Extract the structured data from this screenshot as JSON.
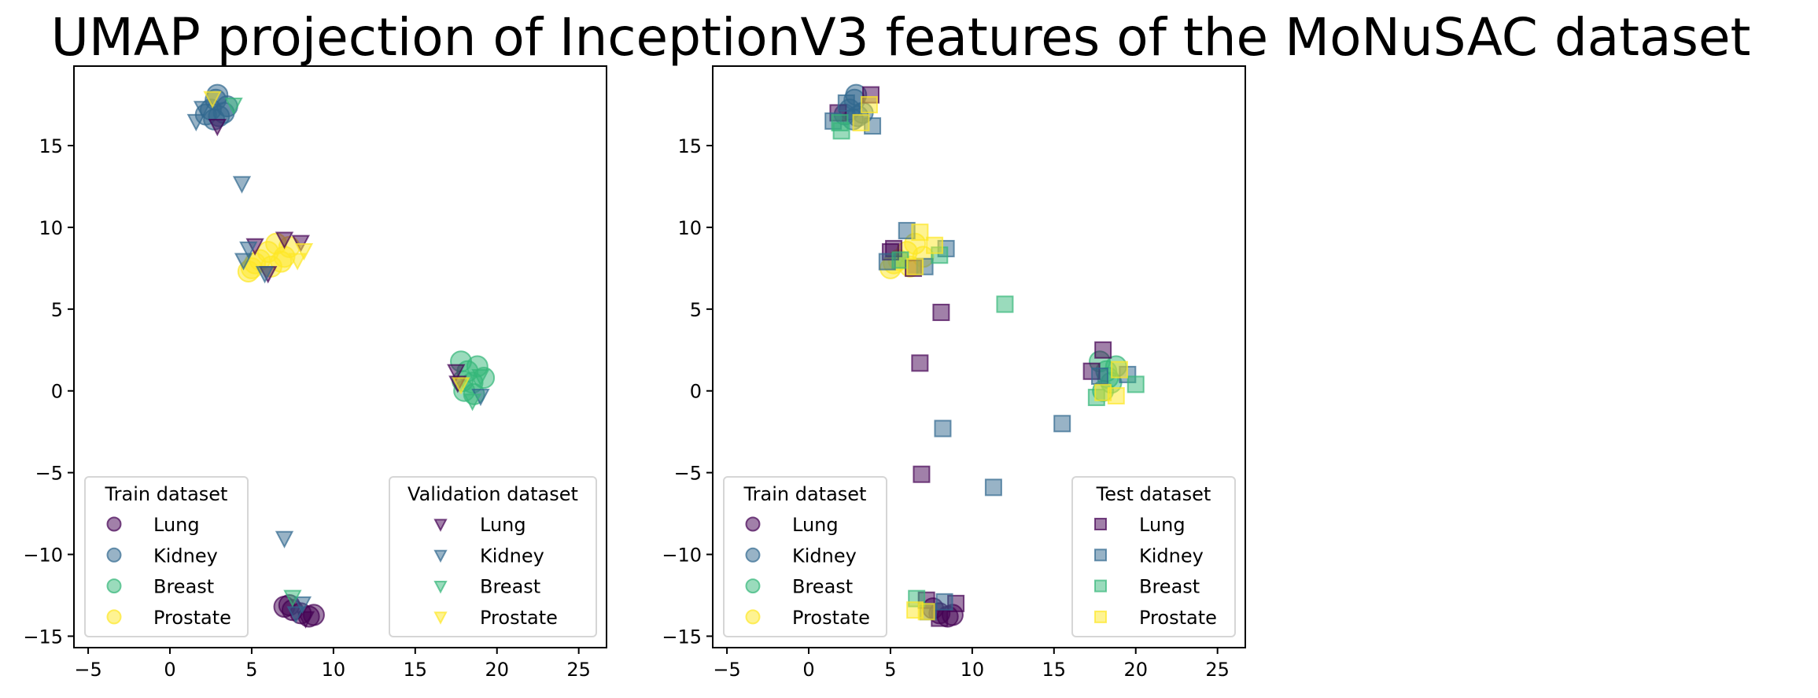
{
  "title": "UMAP projection of InceptionV3 features of the MoNuSAC dataset",
  "colors": {
    "Lung": "#440154",
    "Kidney": "#31688e",
    "Breast": "#35b779",
    "Prostate": "#fde725"
  },
  "chart_data": [
    {
      "type": "scatter",
      "panel": "left",
      "xlim": [
        -5.87,
        26.7
      ],
      "ylim": [
        -15.7,
        19.86
      ],
      "xticks": [
        -5,
        0,
        5,
        10,
        15,
        20,
        25
      ],
      "yticks": [
        -15,
        -10,
        -5,
        0,
        5,
        10,
        15
      ],
      "xtick_labels": [
        "−5",
        "0",
        "5",
        "10",
        "15",
        "20",
        "25"
      ],
      "ytick_labels": [
        "−15",
        "−10",
        "−5",
        "0",
        "5",
        "10",
        "15"
      ],
      "grid": false,
      "legends": [
        {
          "title": "Train dataset",
          "placement": "lower-left",
          "marker": "circle",
          "entries": [
            "Lung",
            "Kidney",
            "Breast",
            "Prostate"
          ]
        },
        {
          "title": "Validation dataset",
          "placement": "lower-right",
          "marker": "triangle-down",
          "entries": [
            "Lung",
            "Kidney",
            "Breast",
            "Prostate"
          ]
        }
      ],
      "series": [
        {
          "name": "Train Kidney",
          "marker": "circle",
          "class": "Kidney",
          "points": [
            [
              2.5,
              17.2
            ],
            [
              2.8,
              17.8
            ],
            [
              3.0,
              16.8
            ],
            [
              2.2,
              16.9
            ],
            [
              3.3,
              17.0
            ],
            [
              2.7,
              16.6
            ],
            [
              2.9,
              18.1
            ],
            [
              3.5,
              17.4
            ]
          ]
        },
        {
          "name": "Train Prostate",
          "marker": "circle",
          "class": "Prostate",
          "points": [
            [
              5.0,
              7.5
            ],
            [
              5.5,
              8.0
            ],
            [
              6.0,
              8.5
            ],
            [
              6.5,
              9.0
            ],
            [
              7.0,
              8.2
            ],
            [
              5.2,
              7.8
            ],
            [
              6.2,
              7.6
            ],
            [
              7.3,
              8.8
            ],
            [
              4.8,
              7.3
            ],
            [
              6.8,
              7.9
            ]
          ]
        },
        {
          "name": "Train Breast",
          "marker": "circle",
          "class": "Breast",
          "points": [
            [
              17.8,
              1.8
            ],
            [
              18.2,
              1.2
            ],
            [
              18.5,
              0.5
            ],
            [
              18.0,
              0.0
            ],
            [
              18.8,
              1.5
            ],
            [
              19.2,
              0.8
            ],
            [
              17.9,
              0.6
            ],
            [
              18.6,
              -0.2
            ]
          ]
        },
        {
          "name": "Train Lung",
          "marker": "circle",
          "class": "Lung",
          "points": [
            [
              7.0,
              -13.2
            ],
            [
              7.5,
              -13.4
            ],
            [
              8.0,
              -13.6
            ],
            [
              8.5,
              -13.8
            ],
            [
              8.8,
              -13.7
            ],
            [
              7.3,
              -13.1
            ]
          ]
        },
        {
          "name": "Validation Lung",
          "marker": "triangle-down",
          "class": "Lung",
          "points": [
            [
              2.9,
              16.2
            ],
            [
              5.2,
              8.9
            ],
            [
              6.0,
              7.2
            ],
            [
              7.0,
              9.3
            ],
            [
              8.0,
              9.1
            ],
            [
              17.5,
              1.2
            ],
            [
              17.6,
              0.5
            ],
            [
              8.3,
              -13.9
            ]
          ]
        },
        {
          "name": "Validation Kidney",
          "marker": "triangle-down",
          "class": "Kidney",
          "points": [
            [
              1.6,
              16.5
            ],
            [
              2.0,
              17.3
            ],
            [
              4.4,
              12.7
            ],
            [
              4.5,
              8.0
            ],
            [
              4.8,
              8.7
            ],
            [
              5.8,
              7.2
            ],
            [
              19.0,
              -0.3
            ],
            [
              7.0,
              -9.0
            ],
            [
              8.1,
              -13.0
            ],
            [
              7.7,
              -13.6
            ]
          ]
        },
        {
          "name": "Validation Breast",
          "marker": "triangle-down",
          "class": "Breast",
          "points": [
            [
              3.9,
              17.5
            ],
            [
              18.5,
              -0.6
            ],
            [
              19.0,
              0.9
            ],
            [
              7.5,
              -12.6
            ]
          ]
        },
        {
          "name": "Validation Prostate",
          "marker": "triangle-down",
          "class": "Prostate",
          "points": [
            [
              2.6,
              17.9
            ],
            [
              7.8,
              8.0
            ],
            [
              8.2,
              8.6
            ],
            [
              17.8,
              0.4
            ]
          ]
        }
      ]
    },
    {
      "type": "scatter",
      "panel": "right",
      "xlim": [
        -5.87,
        26.7
      ],
      "ylim": [
        -15.7,
        19.86
      ],
      "xticks": [
        -5,
        0,
        5,
        10,
        15,
        20,
        25
      ],
      "yticks": [
        -15,
        -10,
        -5,
        0,
        5,
        10,
        15
      ],
      "xtick_labels": [
        "−5",
        "0",
        "5",
        "10",
        "15",
        "20",
        "25"
      ],
      "ytick_labels": [
        "−15",
        "−10",
        "−5",
        "0",
        "5",
        "10",
        "15"
      ],
      "grid": false,
      "legends": [
        {
          "title": "Train dataset",
          "placement": "lower-left",
          "marker": "circle",
          "entries": [
            "Lung",
            "Kidney",
            "Breast",
            "Prostate"
          ]
        },
        {
          "title": "Test dataset",
          "placement": "lower-right",
          "marker": "square",
          "entries": [
            "Lung",
            "Kidney",
            "Breast",
            "Prostate"
          ]
        }
      ],
      "series": [
        {
          "name": "Train Kidney",
          "marker": "circle",
          "class": "Kidney",
          "points": [
            [
              2.5,
              17.2
            ],
            [
              2.8,
              17.8
            ],
            [
              3.0,
              16.8
            ],
            [
              2.2,
              16.9
            ],
            [
              3.3,
              17.0
            ],
            [
              2.7,
              16.6
            ],
            [
              2.9,
              18.1
            ]
          ]
        },
        {
          "name": "Train Prostate",
          "marker": "circle",
          "class": "Prostate",
          "points": [
            [
              5.0,
              7.5
            ],
            [
              5.5,
              8.0
            ],
            [
              6.0,
              8.5
            ],
            [
              6.5,
              9.0
            ],
            [
              7.0,
              8.2
            ],
            [
              5.2,
              7.8
            ],
            [
              6.2,
              7.6
            ]
          ]
        },
        {
          "name": "Train Breast",
          "marker": "circle",
          "class": "Breast",
          "points": [
            [
              17.8,
              1.8
            ],
            [
              18.2,
              1.2
            ],
            [
              18.5,
              0.5
            ],
            [
              18.0,
              0.0
            ],
            [
              18.8,
              1.5
            ],
            [
              18.3,
              0.8
            ]
          ]
        },
        {
          "name": "Train Lung",
          "marker": "circle",
          "class": "Lung",
          "points": [
            [
              8.0,
              -13.6
            ],
            [
              8.5,
              -13.8
            ],
            [
              8.8,
              -13.7
            ],
            [
              7.6,
              -13.3
            ]
          ]
        },
        {
          "name": "Test Lung",
          "marker": "square",
          "class": "Lung",
          "points": [
            [
              3.8,
              18.1
            ],
            [
              1.8,
              17.0
            ],
            [
              5.0,
              8.5
            ],
            [
              5.2,
              8.7
            ],
            [
              6.4,
              7.5
            ],
            [
              8.1,
              4.8
            ],
            [
              6.8,
              1.7
            ],
            [
              18.0,
              2.5
            ],
            [
              17.3,
              1.2
            ],
            [
              6.9,
              -5.1
            ],
            [
              7.2,
              -12.8
            ],
            [
              9.0,
              -13.0
            ],
            [
              8.0,
              -13.9
            ]
          ]
        },
        {
          "name": "Test Kidney",
          "marker": "square",
          "class": "Kidney",
          "points": [
            [
              1.5,
              16.5
            ],
            [
              3.9,
              16.2
            ],
            [
              2.3,
              17.6
            ],
            [
              6.0,
              9.8
            ],
            [
              4.8,
              7.9
            ],
            [
              8.4,
              8.7
            ],
            [
              7.1,
              7.6
            ],
            [
              17.8,
              0.9
            ],
            [
              19.5,
              1.0
            ],
            [
              8.2,
              -2.3
            ],
            [
              15.5,
              -2.0
            ],
            [
              11.3,
              -5.9
            ],
            [
              8.3,
              -12.9
            ],
            [
              7.3,
              -13.5
            ]
          ]
        },
        {
          "name": "Test Breast",
          "marker": "square",
          "class": "Breast",
          "points": [
            [
              2.0,
              15.9
            ],
            [
              1.9,
              16.4
            ],
            [
              5.6,
              8.0
            ],
            [
              8.0,
              8.3
            ],
            [
              12.0,
              5.3
            ],
            [
              17.6,
              -0.4
            ],
            [
              20.0,
              0.4
            ],
            [
              6.6,
              -12.7
            ]
          ]
        },
        {
          "name": "Test Prostate",
          "marker": "square",
          "class": "Prostate",
          "points": [
            [
              3.7,
              17.5
            ],
            [
              3.2,
              16.4
            ],
            [
              6.8,
              9.7
            ],
            [
              7.7,
              8.9
            ],
            [
              6.5,
              7.6
            ],
            [
              19.0,
              1.3
            ],
            [
              18.8,
              -0.3
            ],
            [
              18.0,
              -0.1
            ],
            [
              6.5,
              -13.4
            ],
            [
              7.2,
              -13.5
            ]
          ]
        }
      ]
    }
  ]
}
